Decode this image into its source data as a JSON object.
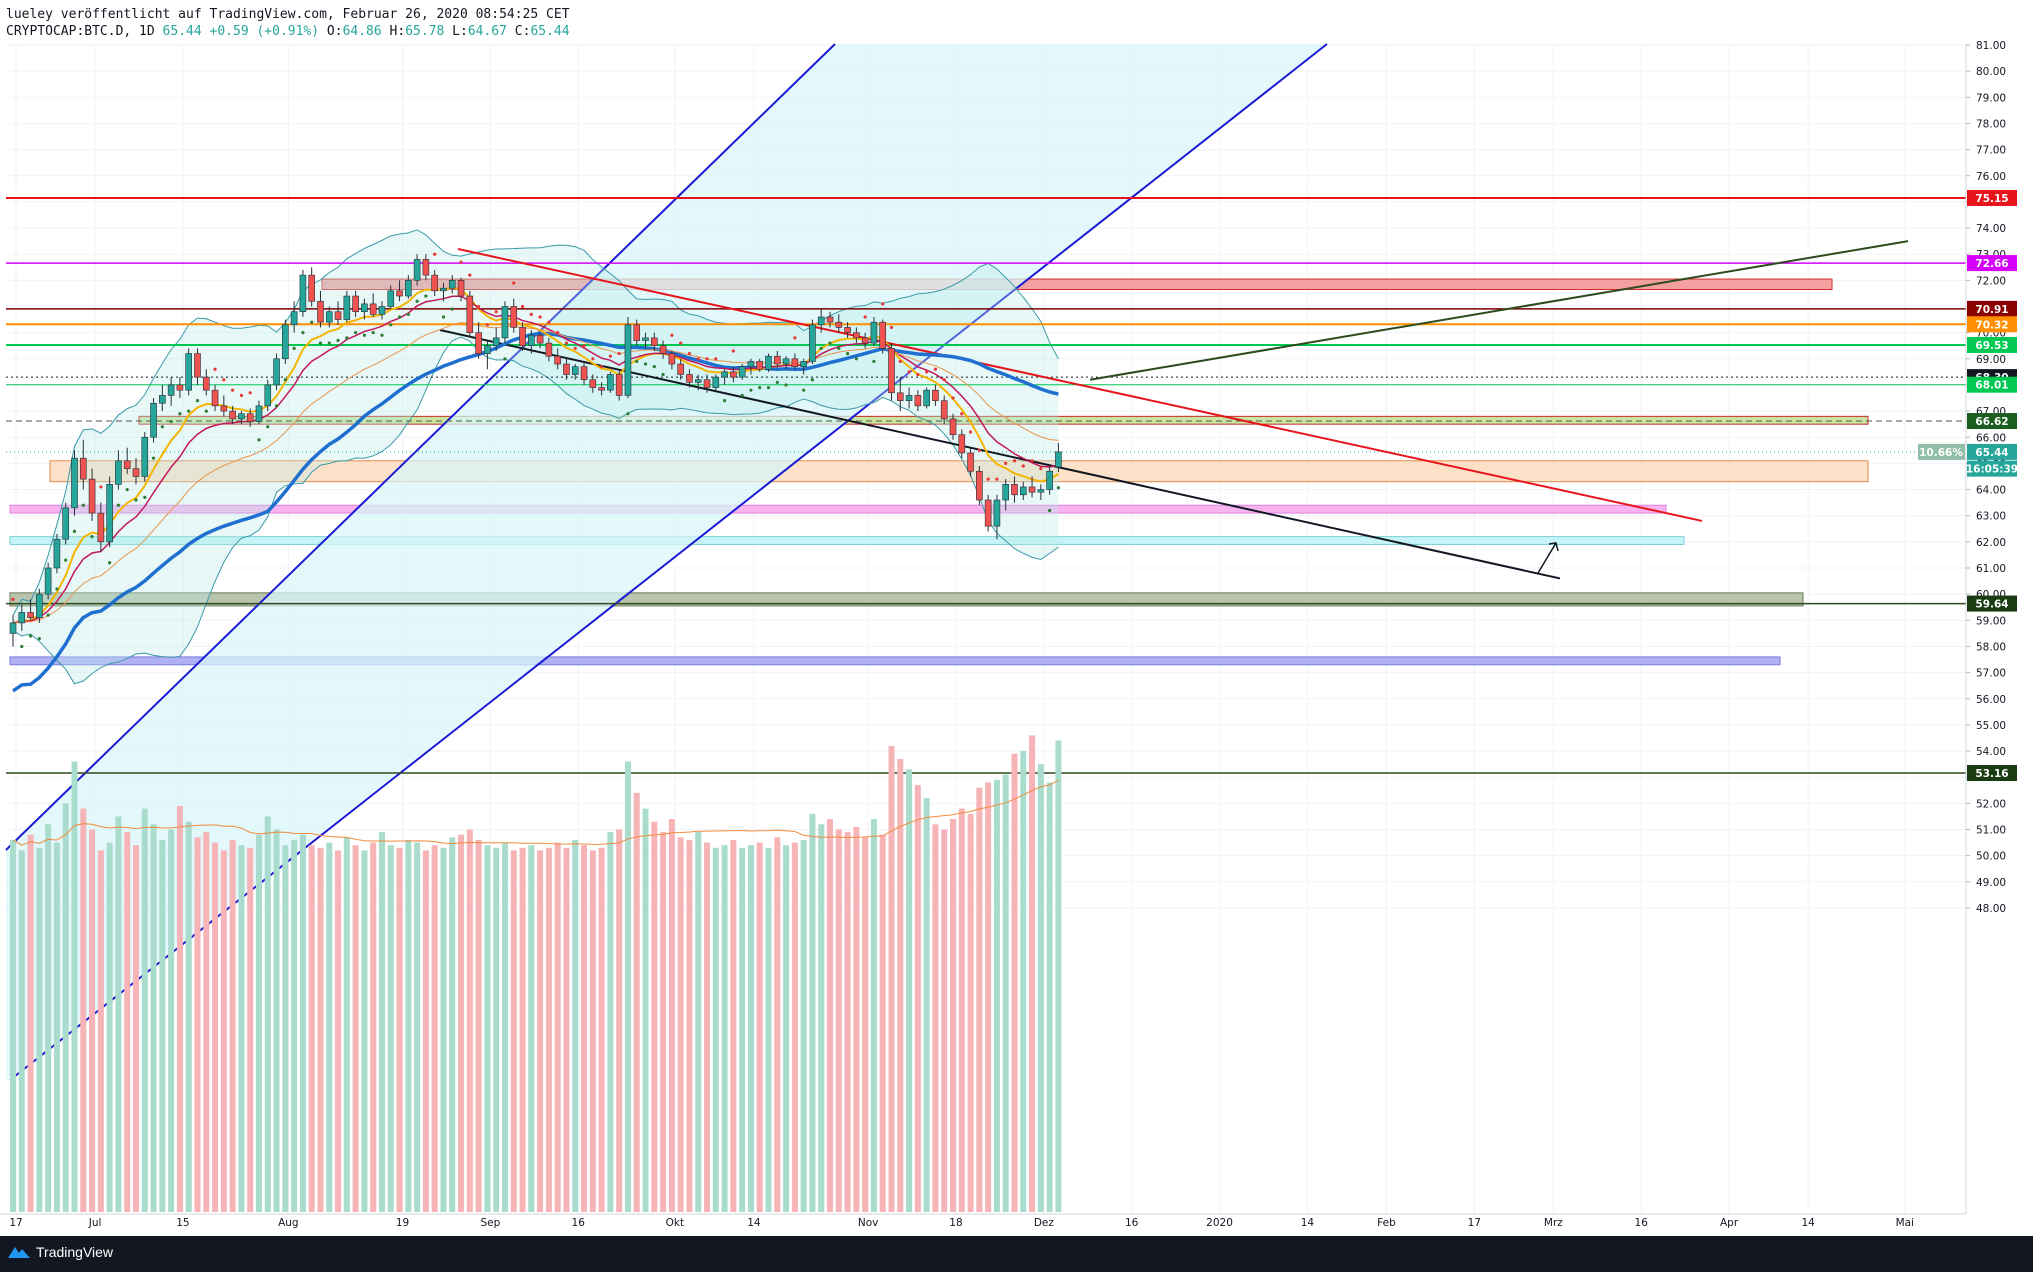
{
  "header": {
    "line1": "lueley veröffentlicht auf TradingView.com, Februar 26, 2020 08:54:25 CET",
    "symbol": "CRYPTOCAP:BTC.D, 1D",
    "last": "65.44",
    "change": "+0.59 (+0.91%)",
    "o_label": "O:",
    "o": "64.86",
    "h_label": "H:",
    "h": "65.78",
    "l_label": "L:",
    "l": "64.67",
    "c_label": "C:",
    "c": "65.44"
  },
  "footer": {
    "brand": "TradingView"
  },
  "colors": {
    "up": "#26a69a",
    "down": "#ef5350",
    "channel": "#1a1ad6",
    "channel_fill": "#d8f6f8",
    "ma200": "#1e6fd0",
    "bb": "#3b9aa8",
    "downtrend": "#e8141b",
    "uptrend": "#2c4a1c"
  },
  "chart_data": {
    "type": "candlestick",
    "symbol": "CRYPTOCAP:BTC.D",
    "interval": "1D",
    "ylim": [
      47.2,
      81.4
    ],
    "y_ticks": [
      "81.00",
      "80.00",
      "79.00",
      "78.00",
      "77.00",
      "76.00",
      "75.00",
      "74.00",
      "73.00",
      "72.00",
      "71.00",
      "70.00",
      "69.00",
      "68.00",
      "67.00",
      "66.00",
      "65.00",
      "64.00",
      "63.00",
      "62.00",
      "61.00",
      "60.00",
      "59.00",
      "58.00",
      "57.00",
      "56.00",
      "55.00",
      "54.00",
      "53.00",
      "52.00",
      "51.00",
      "50.00",
      "49.00",
      "48.00"
    ],
    "x_ticks": [
      "17",
      "Jul",
      "15",
      "Aug",
      "19",
      "Sep",
      "16",
      "Okt",
      "14",
      "Nov",
      "18",
      "Dez",
      "16",
      "2020",
      "14",
      "Feb",
      "17",
      "Mrz",
      "16",
      "Apr",
      "14",
      "Mai"
    ],
    "x_tick_index": [
      0,
      9,
      19,
      31,
      44,
      54,
      64,
      75,
      84,
      97,
      107,
      117,
      127,
      137,
      147,
      156,
      166,
      175,
      185,
      195,
      204,
      215
    ],
    "ohlc": [
      [
        58.5,
        59.2,
        58.0,
        58.9
      ],
      [
        58.9,
        59.6,
        58.6,
        59.3
      ],
      [
        59.3,
        59.8,
        59.0,
        59.1
      ],
      [
        59.1,
        60.2,
        58.9,
        60.0
      ],
      [
        60.0,
        61.2,
        59.8,
        61.0
      ],
      [
        61.0,
        62.3,
        60.8,
        62.1
      ],
      [
        62.1,
        63.5,
        61.9,
        63.3
      ],
      [
        63.3,
        65.5,
        63.0,
        65.2
      ],
      [
        65.2,
        65.9,
        64.0,
        64.4
      ],
      [
        64.4,
        64.8,
        62.8,
        63.1
      ],
      [
        63.1,
        63.5,
        61.6,
        62.0
      ],
      [
        62.0,
        64.5,
        61.8,
        64.2
      ],
      [
        64.2,
        65.5,
        64.0,
        65.1
      ],
      [
        65.1,
        65.6,
        64.6,
        64.8
      ],
      [
        64.8,
        65.2,
        64.2,
        64.5
      ],
      [
        64.5,
        66.2,
        64.3,
        66.0
      ],
      [
        66.0,
        67.5,
        65.8,
        67.3
      ],
      [
        67.3,
        68.0,
        67.0,
        67.6
      ],
      [
        67.6,
        68.3,
        67.2,
        68.0
      ],
      [
        68.0,
        68.3,
        67.5,
        67.8
      ],
      [
        67.8,
        69.4,
        67.6,
        69.2
      ],
      [
        69.2,
        69.4,
        68.0,
        68.3
      ],
      [
        68.3,
        68.6,
        67.6,
        67.8
      ],
      [
        67.8,
        68.0,
        67.0,
        67.2
      ],
      [
        67.2,
        67.6,
        66.8,
        67.0
      ],
      [
        67.0,
        67.2,
        66.5,
        66.7
      ],
      [
        66.7,
        67.0,
        66.5,
        66.9
      ],
      [
        66.9,
        67.1,
        66.4,
        66.6
      ],
      [
        66.6,
        67.4,
        66.5,
        67.2
      ],
      [
        67.2,
        68.2,
        67.0,
        68.0
      ],
      [
        68.0,
        69.2,
        67.8,
        69.0
      ],
      [
        69.0,
        70.5,
        68.8,
        70.3
      ],
      [
        70.3,
        71.2,
        70.0,
        70.8
      ],
      [
        70.8,
        72.4,
        70.6,
        72.2
      ],
      [
        72.2,
        72.5,
        71.0,
        71.2
      ],
      [
        71.2,
        71.6,
        70.2,
        70.4
      ],
      [
        70.4,
        71.0,
        70.2,
        70.8
      ],
      [
        70.8,
        71.2,
        70.3,
        70.5
      ],
      [
        70.5,
        71.6,
        70.4,
        71.4
      ],
      [
        71.4,
        71.6,
        70.6,
        70.8
      ],
      [
        70.8,
        71.3,
        70.5,
        71.1
      ],
      [
        71.1,
        71.5,
        70.6,
        70.7
      ],
      [
        70.7,
        71.2,
        70.5,
        71.0
      ],
      [
        71.0,
        71.8,
        70.9,
        71.6
      ],
      [
        71.6,
        72.0,
        71.2,
        71.4
      ],
      [
        71.4,
        72.2,
        71.3,
        72.0
      ],
      [
        72.0,
        73.0,
        71.8,
        72.8
      ],
      [
        72.8,
        73.0,
        72.0,
        72.2
      ],
      [
        72.2,
        72.4,
        71.4,
        71.6
      ],
      [
        71.6,
        71.9,
        71.2,
        71.7
      ],
      [
        71.7,
        72.2,
        71.5,
        72.0
      ],
      [
        72.0,
        72.1,
        71.2,
        71.4
      ],
      [
        71.4,
        71.6,
        69.8,
        70.0
      ],
      [
        70.0,
        70.4,
        69.0,
        69.2
      ],
      [
        69.2,
        69.7,
        68.6,
        69.5
      ],
      [
        69.5,
        70.2,
        69.3,
        69.8
      ],
      [
        69.8,
        71.2,
        69.6,
        71.0
      ],
      [
        71.0,
        71.3,
        70.0,
        70.2
      ],
      [
        70.2,
        70.4,
        69.3,
        69.5
      ],
      [
        69.5,
        70.1,
        69.2,
        69.9
      ],
      [
        69.9,
        70.0,
        69.4,
        69.6
      ],
      [
        69.6,
        69.8,
        68.9,
        69.1
      ],
      [
        69.1,
        69.4,
        68.6,
        68.8
      ],
      [
        68.8,
        69.0,
        68.2,
        68.4
      ],
      [
        68.4,
        68.8,
        68.2,
        68.7
      ],
      [
        68.7,
        68.9,
        68.0,
        68.2
      ],
      [
        68.2,
        68.4,
        67.7,
        67.9
      ],
      [
        67.9,
        68.1,
        67.6,
        67.8
      ],
      [
        67.8,
        68.5,
        67.7,
        68.4
      ],
      [
        68.4,
        68.6,
        67.4,
        67.6
      ],
      [
        67.6,
        70.6,
        67.5,
        70.3
      ],
      [
        70.3,
        70.5,
        69.5,
        69.7
      ],
      [
        69.7,
        70.0,
        69.4,
        69.8
      ],
      [
        69.8,
        70.0,
        69.3,
        69.5
      ],
      [
        69.5,
        69.7,
        69.0,
        69.2
      ],
      [
        69.2,
        69.3,
        68.6,
        68.8
      ],
      [
        68.8,
        69.0,
        68.2,
        68.4
      ],
      [
        68.4,
        68.6,
        67.9,
        68.1
      ],
      [
        68.1,
        68.4,
        67.8,
        68.2
      ],
      [
        68.2,
        68.4,
        67.7,
        67.9
      ],
      [
        67.9,
        68.4,
        67.8,
        68.3
      ],
      [
        68.3,
        68.6,
        68.0,
        68.5
      ],
      [
        68.5,
        68.7,
        68.1,
        68.3
      ],
      [
        68.3,
        68.8,
        68.2,
        68.7
      ],
      [
        68.7,
        69.0,
        68.4,
        68.9
      ],
      [
        68.9,
        69.0,
        68.5,
        68.6
      ],
      [
        68.6,
        69.2,
        68.5,
        69.1
      ],
      [
        69.1,
        69.3,
        68.7,
        68.8
      ],
      [
        68.8,
        69.1,
        68.6,
        69.0
      ],
      [
        69.0,
        69.2,
        68.6,
        68.7
      ],
      [
        68.7,
        69.0,
        68.4,
        68.9
      ],
      [
        68.9,
        70.5,
        68.8,
        70.3
      ],
      [
        70.3,
        70.9,
        70.0,
        70.6
      ],
      [
        70.6,
        70.8,
        70.2,
        70.4
      ],
      [
        70.4,
        70.7,
        70.0,
        70.2
      ],
      [
        70.2,
        70.4,
        69.8,
        70.0
      ],
      [
        70.0,
        70.2,
        69.6,
        69.8
      ],
      [
        69.8,
        70.0,
        69.4,
        69.6
      ],
      [
        69.6,
        70.6,
        69.5,
        70.4
      ],
      [
        70.4,
        70.5,
        69.2,
        69.4
      ],
      [
        69.4,
        69.6,
        67.4,
        67.7
      ],
      [
        67.7,
        68.3,
        67.0,
        67.4
      ],
      [
        67.4,
        67.9,
        67.1,
        67.6
      ],
      [
        67.6,
        67.8,
        67.0,
        67.2
      ],
      [
        67.2,
        67.9,
        67.1,
        67.8
      ],
      [
        67.8,
        68.0,
        67.2,
        67.4
      ],
      [
        67.4,
        67.6,
        66.5,
        66.7
      ],
      [
        66.7,
        66.9,
        65.9,
        66.1
      ],
      [
        66.1,
        66.3,
        65.2,
        65.4
      ],
      [
        65.4,
        65.6,
        64.5,
        64.7
      ],
      [
        64.7,
        64.9,
        63.4,
        63.6
      ],
      [
        63.6,
        63.8,
        62.4,
        62.6
      ],
      [
        62.6,
        63.8,
        62.1,
        63.6
      ],
      [
        63.6,
        64.4,
        63.2,
        64.2
      ],
      [
        64.2,
        64.5,
        63.5,
        63.8
      ],
      [
        63.8,
        64.3,
        63.6,
        64.1
      ],
      [
        64.1,
        64.5,
        63.7,
        63.9
      ],
      [
        63.9,
        64.2,
        63.6,
        64.0
      ],
      [
        64.0,
        64.9,
        63.8,
        64.7
      ],
      [
        64.86,
        65.78,
        64.67,
        65.44
      ]
    ],
    "volume": [
      50.6,
      50.2,
      50.8,
      50.3,
      51.2,
      50.5,
      52.0,
      53.6,
      51.8,
      51.0,
      50.2,
      50.5,
      51.5,
      50.9,
      50.4,
      51.8,
      51.2,
      50.6,
      51.0,
      51.9,
      51.3,
      50.7,
      50.9,
      50.5,
      50.2,
      50.6,
      50.4,
      50.3,
      50.8,
      51.5,
      51.0,
      50.4,
      50.6,
      50.8,
      50.4,
      50.3,
      50.5,
      50.2,
      50.7,
      50.4,
      50.2,
      50.5,
      50.9,
      50.4,
      50.3,
      50.6,
      50.5,
      50.2,
      50.4,
      50.3,
      50.7,
      50.8,
      51.0,
      50.6,
      50.4,
      50.3,
      50.5,
      50.2,
      50.3,
      50.4,
      50.2,
      50.3,
      50.5,
      50.3,
      50.6,
      50.4,
      50.2,
      50.3,
      50.9,
      51.0,
      53.6,
      52.4,
      51.8,
      51.3,
      50.9,
      51.4,
      50.7,
      50.6,
      50.9,
      50.5,
      50.3,
      50.4,
      50.6,
      50.3,
      50.4,
      50.5,
      50.3,
      50.7,
      50.4,
      50.5,
      50.6,
      51.6,
      51.2,
      51.4,
      51.0,
      50.9,
      51.1,
      50.7,
      51.4,
      50.8,
      54.2,
      53.7,
      53.3,
      52.7,
      52.2,
      51.2,
      51.0,
      51.4,
      51.8,
      51.6,
      52.6,
      52.8,
      52.9,
      53.1,
      53.9,
      54.0,
      54.6,
      53.5,
      52.8,
      54.4
    ]
  }
}
